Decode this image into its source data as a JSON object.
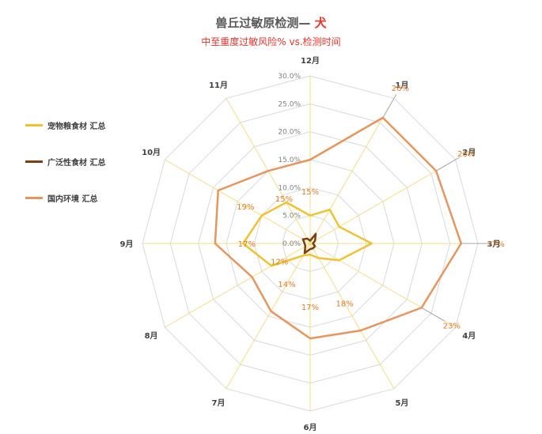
{
  "chart_data": {
    "type": "radar",
    "title": "兽丘过敏原检测— ",
    "title_accent": "犬",
    "subtitle": "中至重度过敏风险% vs.检测时间",
    "categories": [
      "12月",
      "1月",
      "2月",
      "3月",
      "4月",
      "5月",
      "6月",
      "7月",
      "8月",
      "9月",
      "10月",
      "11月"
    ],
    "rlim": [
      0,
      30
    ],
    "ticks": [
      "0.0%",
      "5.0%",
      "10.0%",
      "15.0%",
      "20.0%",
      "25.0%",
      "30.0%"
    ],
    "tick_values": [
      0,
      5,
      10,
      15,
      20,
      25,
      30
    ],
    "grid": true,
    "legend_position": "left",
    "series": [
      {
        "name": "宠物粮食材 汇总",
        "color": "#f2c12e",
        "values": [
          5,
          7,
          6,
          11,
          6,
          3,
          2,
          2.5,
          8,
          12,
          10,
          8.5
        ]
      },
      {
        "name": "广泛性食材 汇总",
        "color": "#7b3f12",
        "values": [
          0.5,
          2,
          1,
          0.5,
          1,
          1,
          1,
          2,
          1,
          1,
          1.5,
          1
        ]
      },
      {
        "name": "国内环境 汇总",
        "color": "#e8955b",
        "values": [
          15,
          26,
          26,
          27,
          23,
          18,
          17,
          14,
          12,
          17,
          19,
          15
        ],
        "labels": [
          "15%",
          "26%",
          "26%",
          "27%",
          "23%",
          "18%",
          "17%",
          "14%",
          "12%",
          "17%",
          "19%",
          "15%"
        ]
      }
    ]
  }
}
